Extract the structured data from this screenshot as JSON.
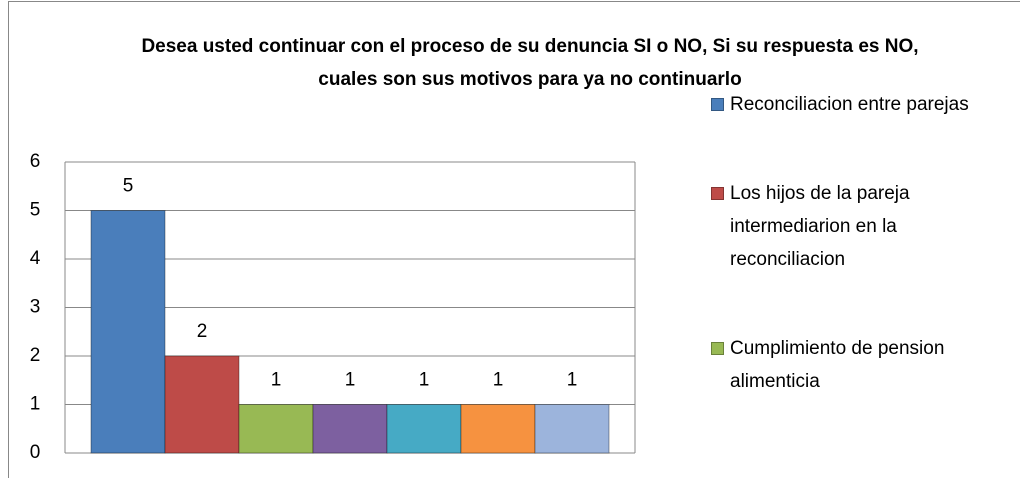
{
  "chart_data": {
    "type": "bar",
    "title": "Desea usted continuar con el proceso de su denuncia SI o NO, Si su respuesta es NO, cuales son sus motivos para ya no continuarlo",
    "categories": [
      null
    ],
    "series": [
      {
        "name": "Reconciliacion entre parejas",
        "color": "#4a7ebb",
        "values": [
          5
        ]
      },
      {
        "name": "Los hijos de la pareja intermediarion en la reconciliacion",
        "color": "#be4b48",
        "values": [
          2
        ]
      },
      {
        "name": "Cumplimiento de pension alimenticia",
        "color": "#98b954",
        "values": [
          1
        ]
      },
      {
        "color": "#7d60a0",
        "values": [
          1
        ]
      },
      {
        "color": "#46aac5",
        "values": [
          1
        ]
      },
      {
        "color": "#f69240",
        "values": [
          1
        ]
      },
      {
        "color": "#9cb4dc",
        "values": [
          1
        ]
      }
    ],
    "ylim": [
      0,
      6
    ],
    "yticks": [
      0,
      1,
      2,
      3,
      4,
      5,
      6
    ],
    "grid": true,
    "legend": "right"
  }
}
